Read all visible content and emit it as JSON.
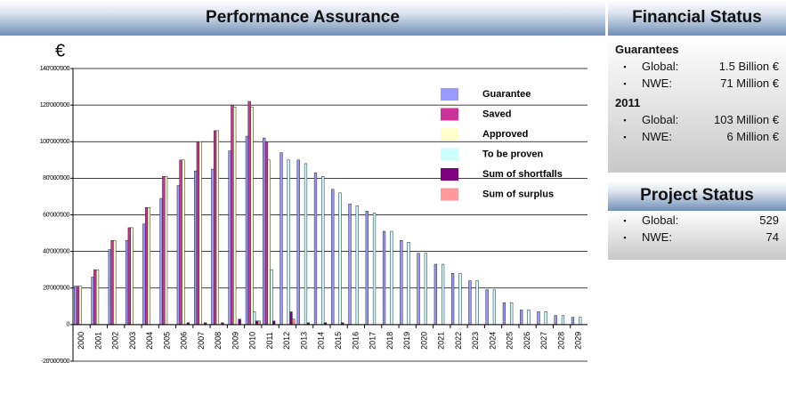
{
  "chart_data": {
    "type": "bar",
    "title": "Performance Assurance",
    "ylabel": "€",
    "categories": [
      "2000",
      "2001",
      "2002",
      "2003",
      "2004",
      "2005",
      "2006",
      "2007",
      "2008",
      "2009",
      "2010",
      "2011",
      "2012",
      "2013",
      "2014",
      "2015",
      "2016",
      "2017",
      "2018",
      "2019",
      "2020",
      "2021",
      "2022",
      "2023",
      "2024",
      "2025",
      "2026",
      "2027",
      "2028",
      "2029"
    ],
    "series": [
      {
        "name": "Guarantee",
        "color": "#9999ff",
        "values": [
          21000000,
          26000000,
          41000000,
          46000000,
          55000000,
          69000000,
          76000000,
          84000000,
          85000000,
          95000000,
          103000000,
          102000000,
          94000000,
          90000000,
          83000000,
          74000000,
          66000000,
          62000000,
          51000000,
          46000000,
          39000000,
          33000000,
          28000000,
          24000000,
          19000000,
          12000000,
          8000000,
          7000000,
          5000000,
          4000000
        ]
      },
      {
        "name": "Saved",
        "color": "#cc3399",
        "values": [
          21000000,
          30000000,
          46000000,
          53000000,
          64000000,
          81000000,
          90000000,
          100000000,
          106000000,
          120000000,
          122000000,
          100000000,
          0,
          0,
          0,
          0,
          0,
          0,
          0,
          0,
          0,
          0,
          0,
          0,
          0,
          0,
          0,
          0,
          0,
          0
        ]
      },
      {
        "name": "Approved",
        "color": "#ffffcc",
        "values": [
          21000000,
          30000000,
          46000000,
          53000000,
          64000000,
          81000000,
          90000000,
          100000000,
          106000000,
          119000000,
          119000000,
          90000000,
          0,
          0,
          0,
          0,
          0,
          0,
          0,
          0,
          0,
          0,
          0,
          0,
          0,
          0,
          0,
          0,
          0,
          0
        ]
      },
      {
        "name": "To be proven",
        "color": "#ccffff",
        "values": [
          0,
          0,
          0,
          0,
          0,
          0,
          0,
          0,
          0,
          0,
          7000000,
          30000000,
          90000000,
          88000000,
          81000000,
          72000000,
          65000000,
          61000000,
          51000000,
          45000000,
          39000000,
          33000000,
          28000000,
          24000000,
          19000000,
          12000000,
          8000000,
          7000000,
          5000000,
          4000000
        ]
      },
      {
        "name": "Sum of shortfalls",
        "color": "#800080",
        "values": [
          0,
          0,
          0,
          0,
          0,
          0,
          1000000,
          1000000,
          1000000,
          3000000,
          2000000,
          2000000,
          7000000,
          1000000,
          1000000,
          1000000,
          0,
          0,
          0,
          0,
          0,
          0,
          0,
          0,
          0,
          0,
          0,
          0,
          0,
          0
        ]
      },
      {
        "name": "Sum of surplus",
        "color": "#ff9999",
        "values": [
          0,
          0,
          0,
          0,
          0,
          0,
          0,
          0,
          0,
          0,
          2000000,
          0,
          3000000,
          0,
          0,
          0,
          0,
          0,
          0,
          0,
          0,
          0,
          0,
          0,
          0,
          0,
          0,
          0,
          0,
          0
        ]
      }
    ],
    "ylim": [
      -20000000,
      140000000
    ],
    "yticks": [
      {
        "value": -20000000,
        "label": "-20'000'000"
      },
      0,
      {
        "value": 20000000,
        "label": "20'000'000"
      },
      {
        "value": 40000000,
        "label": "40'000'000"
      },
      {
        "value": 60000000,
        "label": "60'000'000"
      },
      {
        "value": 80000000,
        "label": "80'000'000"
      },
      {
        "value": 100000000,
        "label": "100'000'000"
      },
      {
        "value": 120000000,
        "label": "120'000'000"
      },
      {
        "value": 140000000,
        "label": "140'000'000"
      }
    ],
    "grid": true,
    "legend": "top-right"
  },
  "panel": {
    "financial": {
      "title": "Financial Status",
      "groups": [
        {
          "heading": "Guarantees",
          "items": [
            [
              "Global:",
              "1.5 Billion €"
            ],
            [
              "NWE:",
              "71 Million €"
            ]
          ]
        },
        {
          "heading": "2011",
          "items": [
            [
              "Global:",
              "103 Million €"
            ],
            [
              "NWE:",
              "6 Million €"
            ]
          ]
        }
      ]
    },
    "project": {
      "title": "Project Status",
      "items": [
        [
          "Global:",
          "529"
        ],
        [
          "NWE:",
          "74"
        ]
      ]
    }
  }
}
